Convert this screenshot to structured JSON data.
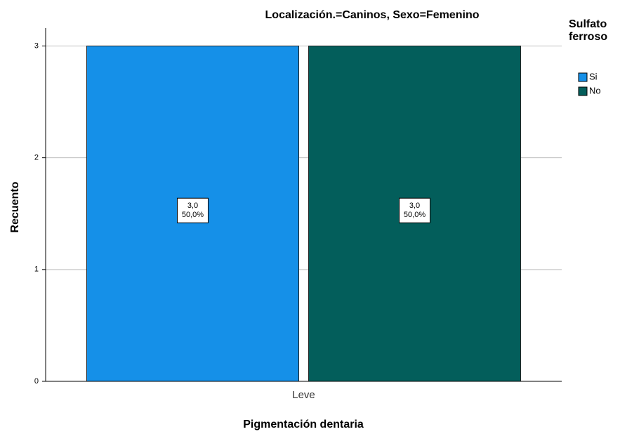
{
  "chart_data": {
    "type": "bar",
    "title": "Localización.=Caninos, Sexo=Femenino",
    "x_label": "Pigmentación  dentaria",
    "y_label": "Recuento",
    "legend_title": [
      "Sulfato",
      "ferroso"
    ],
    "categories": [
      "Leve"
    ],
    "series": [
      {
        "name": "Si",
        "color": "#1590e8",
        "values": [
          3
        ],
        "value_labels": [
          "3,0"
        ],
        "percent_labels": [
          "50,0%"
        ]
      },
      {
        "name": "No",
        "color": "#035e5b",
        "values": [
          3
        ],
        "value_labels": [
          "3,0"
        ],
        "percent_labels": [
          "50,0%"
        ]
      }
    ],
    "ylim": [
      0,
      3.16
    ],
    "yticks": [
      0,
      1,
      2,
      3
    ],
    "grid": true,
    "legend": "right"
  }
}
